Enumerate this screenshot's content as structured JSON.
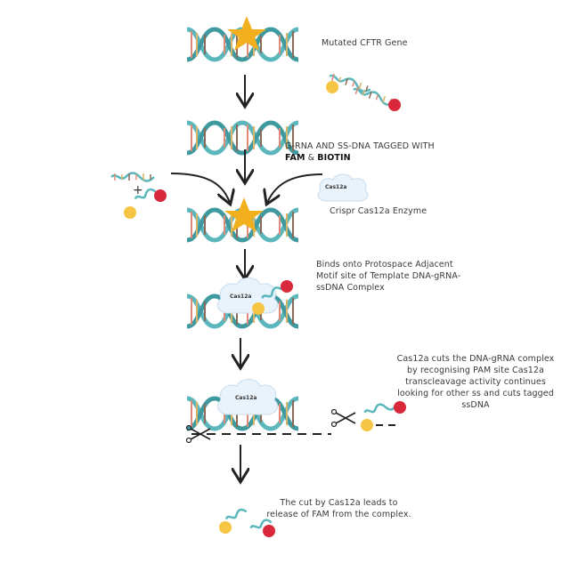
{
  "labels": {
    "mutated_gene": "Mutated CFTR Gene",
    "grna_line1": "G-RNA AND SS-DNA TAGGED WITH",
    "grna_fam": "FAM",
    "grna_amp": " & ",
    "grna_biotin": "BIOTIN",
    "enzyme": "Crispr Cas12a Enzyme",
    "cloud_tag": "Cas12a",
    "binds": "Binds onto Protospace Adjacent Motif site of Template DNA-gRNA-ssDNA Complex",
    "cuts": "Cas12a cuts the DNA-gRNA complex by recognising PAM site Cas12a transcleavage activity continues looking for other ss and cuts tagged ssDNA",
    "release": "The cut by Cas12a leads to release of FAM from the complex."
  },
  "colors": {
    "helix": "#5bb7bc",
    "helix_dark": "#3f9aa0",
    "rung_a": "#e08a7a",
    "rung_b": "#d9b56b",
    "star": "#f2b01e",
    "fam": "#f6c544",
    "biotin": "#d9283c",
    "cloud": "#e9f3fb",
    "arrow": "#222222"
  }
}
